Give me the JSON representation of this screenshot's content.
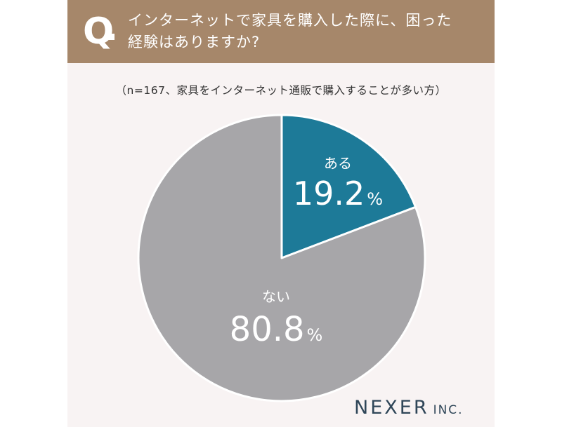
{
  "header": {
    "q_letter": "Q",
    "question_line1": "インターネットで家具を購入した際に、困った",
    "question_line2": "経験はありますか?"
  },
  "subtitle": "（n=167、家具をインターネット通販で購入することが多い方）",
  "chart_data": {
    "type": "pie",
    "n": 167,
    "slices": [
      {
        "label": "ある",
        "value": 19.2,
        "value_text": "19.2",
        "unit": "%",
        "color": "#1d7a98"
      },
      {
        "label": "ない",
        "value": 80.8,
        "value_text": "80.8",
        "unit": "%",
        "color": "#a7a6a9"
      }
    ]
  },
  "logo": {
    "main": "NEXER",
    "sub": "INC."
  },
  "colors": {
    "banner": "#a6876a",
    "background": "#f8f3f3",
    "logo_text": "#2f4658"
  }
}
